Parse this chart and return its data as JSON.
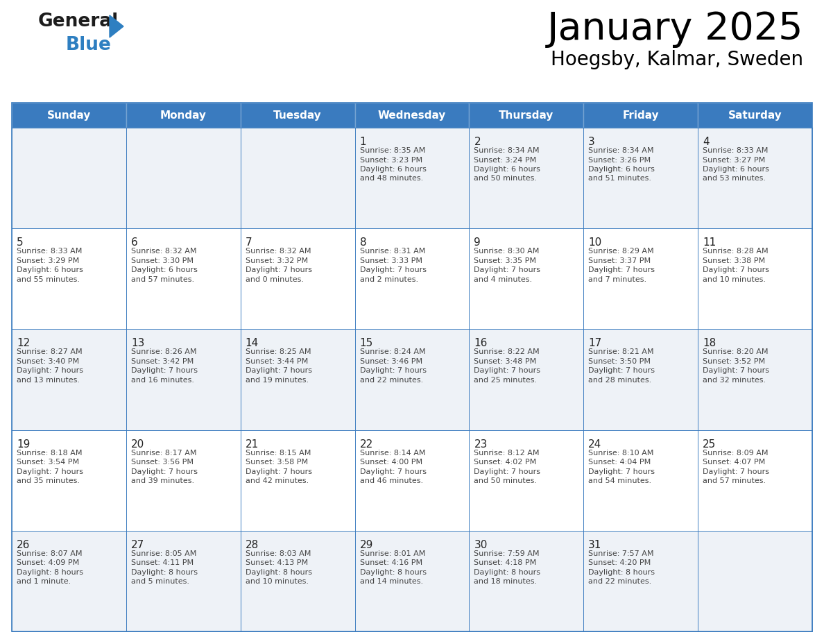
{
  "title": "January 2025",
  "subtitle": "Hoegsby, Kalmar, Sweden",
  "days_of_week": [
    "Sunday",
    "Monday",
    "Tuesday",
    "Wednesday",
    "Thursday",
    "Friday",
    "Saturday"
  ],
  "header_bg": "#3a7bbf",
  "header_text": "#ffffff",
  "cell_bg_odd": "#eef2f7",
  "cell_bg_even": "#ffffff",
  "border_color": "#3a7bbf",
  "day_number_color": "#222222",
  "cell_text_color": "#444444",
  "weeks": [
    [
      null,
      null,
      null,
      {
        "day": 1,
        "sunrise": "8:35 AM",
        "sunset": "3:23 PM",
        "daylight": "6 hours and 48 minutes."
      },
      {
        "day": 2,
        "sunrise": "8:34 AM",
        "sunset": "3:24 PM",
        "daylight": "6 hours and 50 minutes."
      },
      {
        "day": 3,
        "sunrise": "8:34 AM",
        "sunset": "3:26 PM",
        "daylight": "6 hours and 51 minutes."
      },
      {
        "day": 4,
        "sunrise": "8:33 AM",
        "sunset": "3:27 PM",
        "daylight": "6 hours and 53 minutes."
      }
    ],
    [
      {
        "day": 5,
        "sunrise": "8:33 AM",
        "sunset": "3:29 PM",
        "daylight": "6 hours and 55 minutes."
      },
      {
        "day": 6,
        "sunrise": "8:32 AM",
        "sunset": "3:30 PM",
        "daylight": "6 hours and 57 minutes."
      },
      {
        "day": 7,
        "sunrise": "8:32 AM",
        "sunset": "3:32 PM",
        "daylight": "7 hours and 0 minutes."
      },
      {
        "day": 8,
        "sunrise": "8:31 AM",
        "sunset": "3:33 PM",
        "daylight": "7 hours and 2 minutes."
      },
      {
        "day": 9,
        "sunrise": "8:30 AM",
        "sunset": "3:35 PM",
        "daylight": "7 hours and 4 minutes."
      },
      {
        "day": 10,
        "sunrise": "8:29 AM",
        "sunset": "3:37 PM",
        "daylight": "7 hours and 7 minutes."
      },
      {
        "day": 11,
        "sunrise": "8:28 AM",
        "sunset": "3:38 PM",
        "daylight": "7 hours and 10 minutes."
      }
    ],
    [
      {
        "day": 12,
        "sunrise": "8:27 AM",
        "sunset": "3:40 PM",
        "daylight": "7 hours and 13 minutes."
      },
      {
        "day": 13,
        "sunrise": "8:26 AM",
        "sunset": "3:42 PM",
        "daylight": "7 hours and 16 minutes."
      },
      {
        "day": 14,
        "sunrise": "8:25 AM",
        "sunset": "3:44 PM",
        "daylight": "7 hours and 19 minutes."
      },
      {
        "day": 15,
        "sunrise": "8:24 AM",
        "sunset": "3:46 PM",
        "daylight": "7 hours and 22 minutes."
      },
      {
        "day": 16,
        "sunrise": "8:22 AM",
        "sunset": "3:48 PM",
        "daylight": "7 hours and 25 minutes."
      },
      {
        "day": 17,
        "sunrise": "8:21 AM",
        "sunset": "3:50 PM",
        "daylight": "7 hours and 28 minutes."
      },
      {
        "day": 18,
        "sunrise": "8:20 AM",
        "sunset": "3:52 PM",
        "daylight": "7 hours and 32 minutes."
      }
    ],
    [
      {
        "day": 19,
        "sunrise": "8:18 AM",
        "sunset": "3:54 PM",
        "daylight": "7 hours and 35 minutes."
      },
      {
        "day": 20,
        "sunrise": "8:17 AM",
        "sunset": "3:56 PM",
        "daylight": "7 hours and 39 minutes."
      },
      {
        "day": 21,
        "sunrise": "8:15 AM",
        "sunset": "3:58 PM",
        "daylight": "7 hours and 42 minutes."
      },
      {
        "day": 22,
        "sunrise": "8:14 AM",
        "sunset": "4:00 PM",
        "daylight": "7 hours and 46 minutes."
      },
      {
        "day": 23,
        "sunrise": "8:12 AM",
        "sunset": "4:02 PM",
        "daylight": "7 hours and 50 minutes."
      },
      {
        "day": 24,
        "sunrise": "8:10 AM",
        "sunset": "4:04 PM",
        "daylight": "7 hours and 54 minutes."
      },
      {
        "day": 25,
        "sunrise": "8:09 AM",
        "sunset": "4:07 PM",
        "daylight": "7 hours and 57 minutes."
      }
    ],
    [
      {
        "day": 26,
        "sunrise": "8:07 AM",
        "sunset": "4:09 PM",
        "daylight": "8 hours and 1 minute."
      },
      {
        "day": 27,
        "sunrise": "8:05 AM",
        "sunset": "4:11 PM",
        "daylight": "8 hours and 5 minutes."
      },
      {
        "day": 28,
        "sunrise": "8:03 AM",
        "sunset": "4:13 PM",
        "daylight": "8 hours and 10 minutes."
      },
      {
        "day": 29,
        "sunrise": "8:01 AM",
        "sunset": "4:16 PM",
        "daylight": "8 hours and 14 minutes."
      },
      {
        "day": 30,
        "sunrise": "7:59 AM",
        "sunset": "4:18 PM",
        "daylight": "8 hours and 18 minutes."
      },
      {
        "day": 31,
        "sunrise": "7:57 AM",
        "sunset": "4:20 PM",
        "daylight": "8 hours and 22 minutes."
      },
      null
    ]
  ]
}
